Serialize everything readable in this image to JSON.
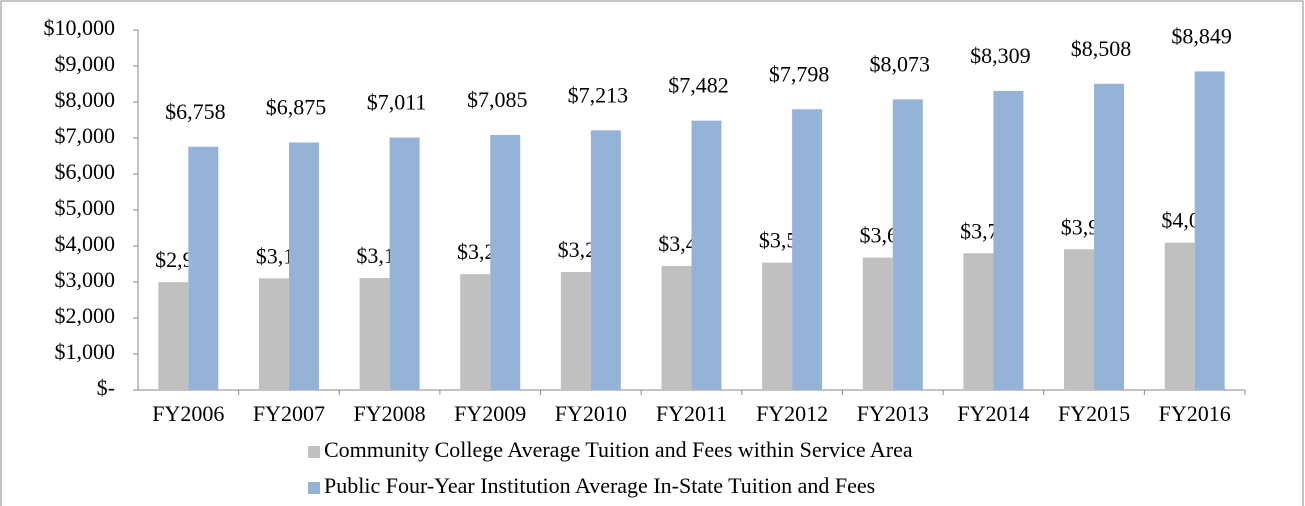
{
  "chart_data": {
    "type": "bar",
    "categories": [
      "FY2006",
      "FY2007",
      "FY2008",
      "FY2009",
      "FY2010",
      "FY2011",
      "FY2012",
      "FY2013",
      "FY2014",
      "FY2015",
      "FY2016"
    ],
    "series": [
      {
        "name": "Community College Average Tuition and Fees within Service Area",
        "color": "#c0c0c0",
        "values": [
          2996,
          3102,
          3109,
          3218,
          3279,
          3445,
          3539,
          3679,
          3799,
          3910,
          4094
        ],
        "value_labels": [
          "$2,996",
          "$3,102",
          "$3,109",
          "$3,218",
          "$3,279",
          "$3,445",
          "$3,539",
          "$3,679",
          "$3,799",
          "$3,910",
          "$4,094"
        ]
      },
      {
        "name": "Public Four-Year Institution Average In-State Tuition and Fees",
        "color": "#95b3d7",
        "values": [
          6758,
          6875,
          7011,
          7085,
          7213,
          7482,
          7798,
          8073,
          8309,
          8508,
          8849
        ],
        "value_labels": [
          "$6,758",
          "$6,875",
          "$7,011",
          "$7,085",
          "$7,213",
          "$7,482",
          "$7,798",
          "$8,073",
          "$8,309",
          "$8,508",
          "$8,849"
        ]
      }
    ],
    "ylim": [
      0,
      10000
    ],
    "yticks": [
      {
        "value": 0,
        "label": "$-"
      },
      {
        "value": 1000,
        "label": "$1,000"
      },
      {
        "value": 2000,
        "label": "$2,000"
      },
      {
        "value": 3000,
        "label": "$3,000"
      },
      {
        "value": 4000,
        "label": "$4,000"
      },
      {
        "value": 5000,
        "label": "$5,000"
      },
      {
        "value": 6000,
        "label": "$6,000"
      },
      {
        "value": 7000,
        "label": "$7,000"
      },
      {
        "value": 8000,
        "label": "$8,000"
      },
      {
        "value": 9000,
        "label": "$9,000"
      },
      {
        "value": 10000,
        "label": "$10,000"
      }
    ],
    "grid": false,
    "legend": "bottom"
  }
}
